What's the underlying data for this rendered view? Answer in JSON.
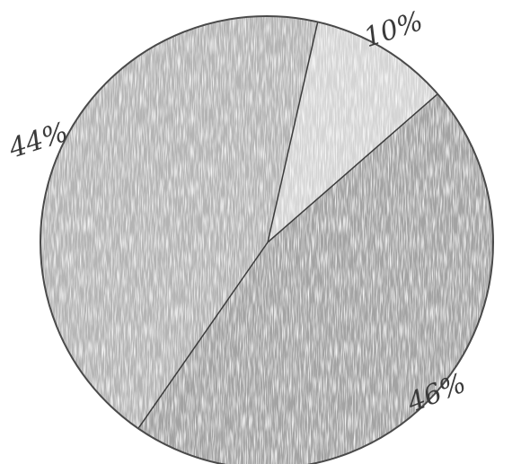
{
  "chart_data": {
    "type": "pie",
    "slices": [
      {
        "label": "10%",
        "value": 10,
        "color": "#d4d4d4"
      },
      {
        "label": "46%",
        "value": 46,
        "color": "#a3a3a3"
      },
      {
        "label": "44%",
        "value": 44,
        "color": "#b4b4b4"
      }
    ],
    "legend": false
  }
}
